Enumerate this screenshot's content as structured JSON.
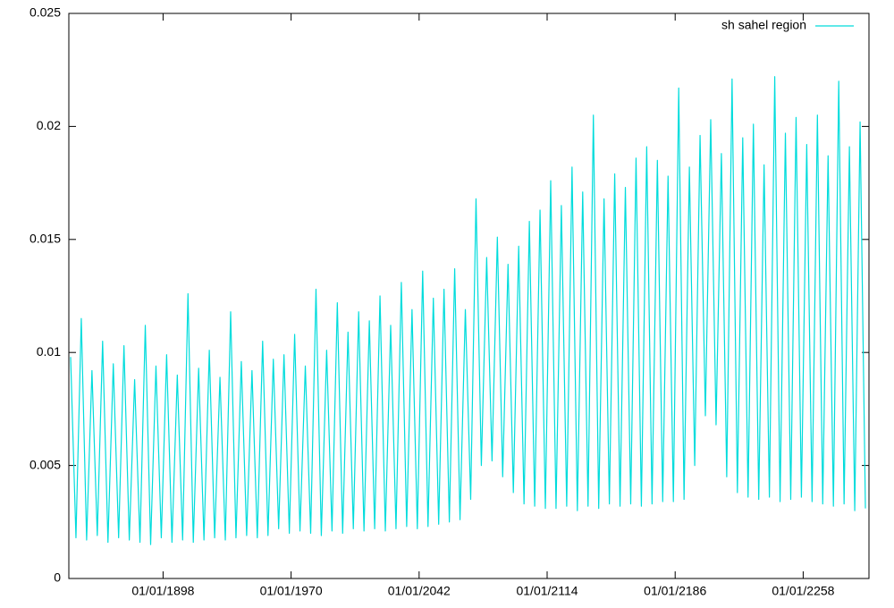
{
  "chart_data": {
    "type": "line",
    "x": [
      1846,
      1849,
      1852,
      1855,
      1858,
      1861,
      1864,
      1867,
      1870,
      1873,
      1876,
      1879,
      1882,
      1885,
      1888,
      1891,
      1894,
      1897,
      1900,
      1903,
      1906,
      1909,
      1912,
      1915,
      1918,
      1921,
      1924,
      1927,
      1930,
      1933,
      1936,
      1939,
      1942,
      1945,
      1948,
      1951,
      1954,
      1957,
      1960,
      1963,
      1966,
      1969,
      1972,
      1975,
      1978,
      1981,
      1984,
      1987,
      1990,
      1993,
      1996,
      1999,
      2002,
      2005,
      2008,
      2011,
      2014,
      2017,
      2020,
      2023,
      2026,
      2029,
      2032,
      2035,
      2038,
      2041,
      2044,
      2047,
      2050,
      2053,
      2056,
      2059,
      2062,
      2065,
      2068,
      2071,
      2074,
      2077,
      2080,
      2083,
      2086,
      2089,
      2092,
      2095,
      2098,
      2101,
      2104,
      2107,
      2110,
      2113,
      2116,
      2119,
      2122,
      2125,
      2128,
      2131,
      2134,
      2137,
      2140,
      2143,
      2146,
      2149,
      2152,
      2155,
      2158,
      2161,
      2164,
      2167,
      2170,
      2173,
      2176,
      2179,
      2182,
      2185,
      2188,
      2191,
      2194,
      2197,
      2200,
      2203,
      2206,
      2209,
      2212,
      2215,
      2218,
      2221,
      2224,
      2227,
      2230,
      2233,
      2236,
      2239,
      2242,
      2245,
      2248,
      2251,
      2254,
      2257,
      2260,
      2263,
      2266,
      2269,
      2272,
      2275,
      2278,
      2281,
      2284,
      2287,
      2290,
      2293
    ],
    "series": [
      {
        "name": "sh sahel region",
        "color": "#00dcdc",
        "values": [
          0.0098,
          0.0018,
          0.0115,
          0.0017,
          0.0092,
          0.0019,
          0.0105,
          0.0016,
          0.0095,
          0.0018,
          0.0103,
          0.0017,
          0.0088,
          0.0016,
          0.0112,
          0.0015,
          0.0094,
          0.0018,
          0.0099,
          0.0016,
          0.009,
          0.0017,
          0.0126,
          0.0016,
          0.0093,
          0.0017,
          0.0101,
          0.0018,
          0.0089,
          0.0017,
          0.0118,
          0.0018,
          0.0096,
          0.0019,
          0.0092,
          0.0018,
          0.0105,
          0.0019,
          0.0097,
          0.0022,
          0.0099,
          0.002,
          0.0108,
          0.0021,
          0.0094,
          0.002,
          0.0128,
          0.0019,
          0.0101,
          0.0021,
          0.0122,
          0.002,
          0.0109,
          0.0022,
          0.0118,
          0.0021,
          0.0114,
          0.0022,
          0.0125,
          0.0021,
          0.0112,
          0.0022,
          0.0131,
          0.0023,
          0.0119,
          0.0022,
          0.0136,
          0.0023,
          0.0124,
          0.0024,
          0.0128,
          0.0025,
          0.0137,
          0.0026,
          0.0119,
          0.0035,
          0.0168,
          0.005,
          0.0142,
          0.0052,
          0.0151,
          0.0045,
          0.0139,
          0.0038,
          0.0147,
          0.0033,
          0.0158,
          0.0032,
          0.0163,
          0.0031,
          0.0176,
          0.0031,
          0.0165,
          0.0032,
          0.0182,
          0.003,
          0.0171,
          0.0032,
          0.0205,
          0.0031,
          0.0168,
          0.0033,
          0.0179,
          0.0032,
          0.0173,
          0.0033,
          0.0186,
          0.0032,
          0.0191,
          0.0033,
          0.0185,
          0.0034,
          0.0178,
          0.0034,
          0.0217,
          0.0035,
          0.0182,
          0.005,
          0.0196,
          0.0072,
          0.0203,
          0.0068,
          0.0188,
          0.0045,
          0.0221,
          0.0038,
          0.0195,
          0.0036,
          0.0201,
          0.0035,
          0.0183,
          0.0036,
          0.0222,
          0.0034,
          0.0197,
          0.0035,
          0.0204,
          0.0036,
          0.0192,
          0.0034,
          0.0205,
          0.0033,
          0.0187,
          0.0032,
          0.022,
          0.0033,
          0.0191,
          0.003,
          0.0202,
          0.0031
        ]
      }
    ],
    "xlim": [
      1845,
      2295
    ],
    "xticks": [
      {
        "value": 1898,
        "label": "01/01/1898"
      },
      {
        "value": 1970,
        "label": "01/01/1970"
      },
      {
        "value": 2042,
        "label": "01/01/2042"
      },
      {
        "value": 2114,
        "label": "01/01/2114"
      },
      {
        "value": 2186,
        "label": "01/01/2186"
      },
      {
        "value": 2258,
        "label": "01/01/2258"
      }
    ],
    "ylim": [
      0,
      0.025
    ],
    "yticks": [
      0,
      0.005,
      0.01,
      0.015,
      0.02,
      0.025
    ],
    "grid": false,
    "legend": "top-right"
  }
}
